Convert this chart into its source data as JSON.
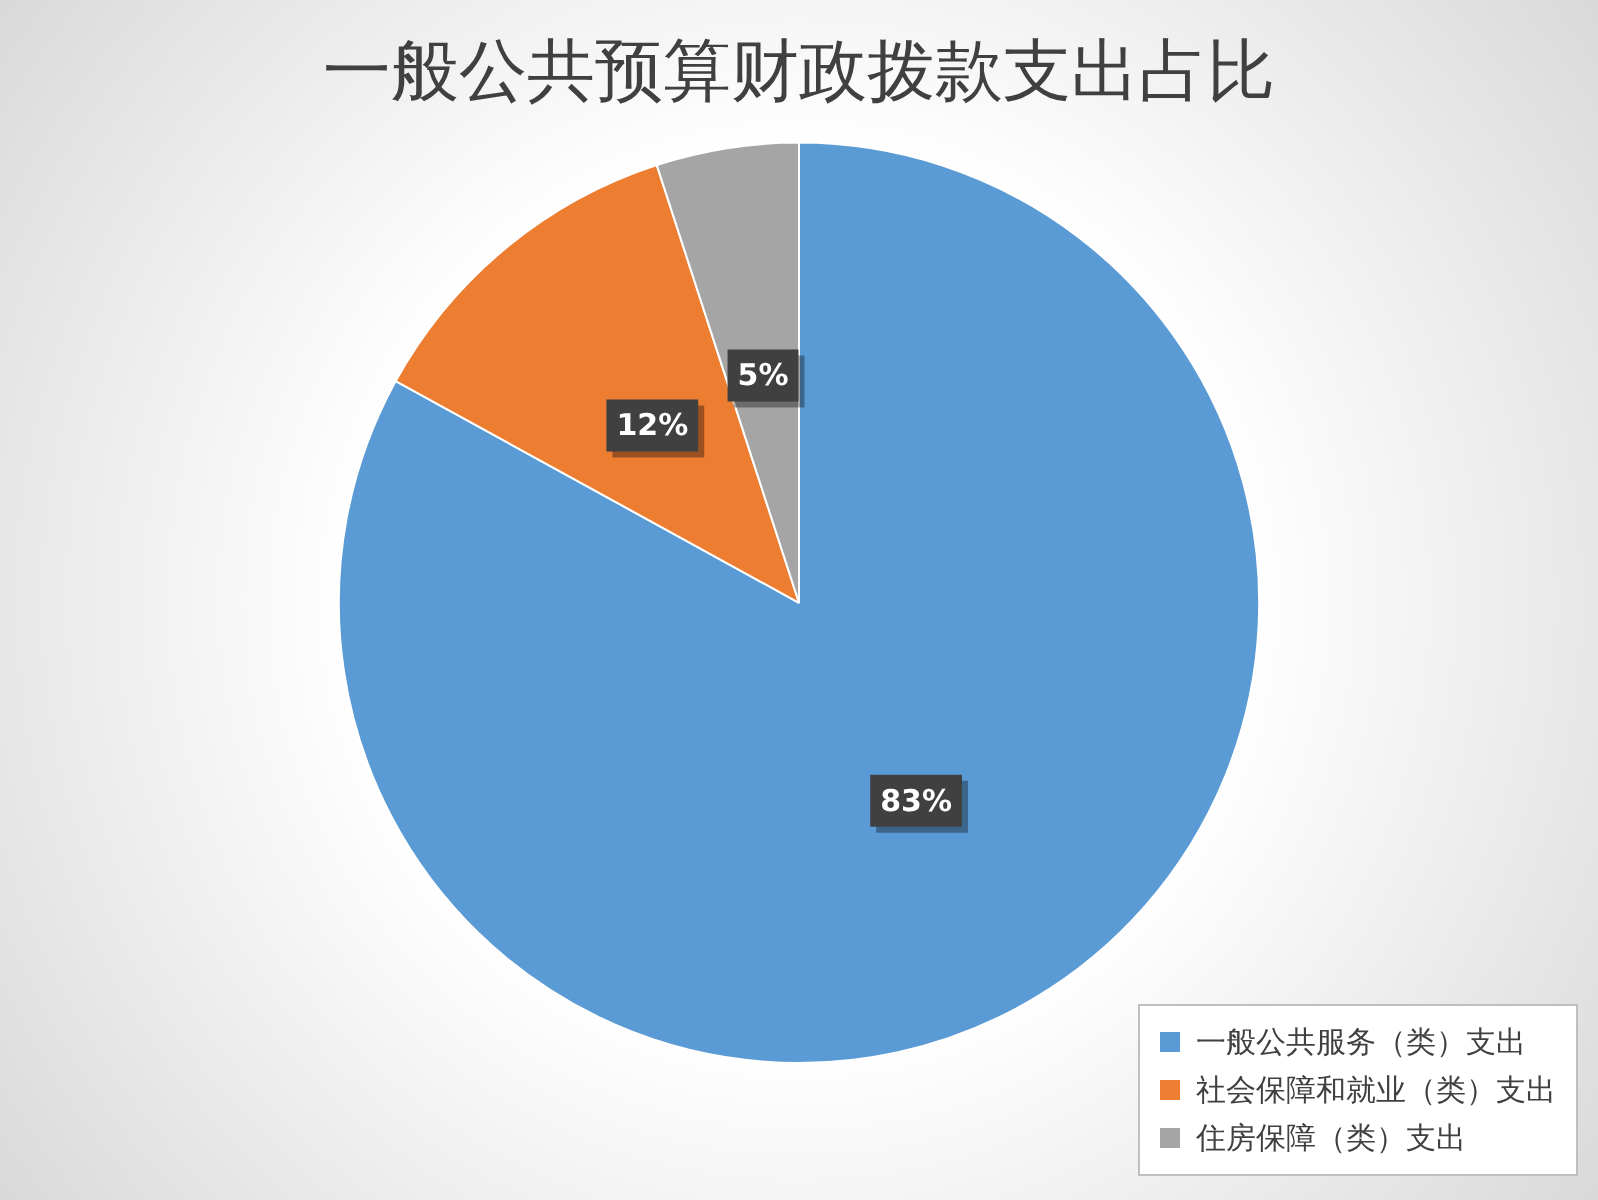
{
  "chart_data": {
    "type": "pie",
    "title": "一般公共预算财政拨款支出占比",
    "categories": [
      "一般公共服务（类）支出",
      "社会保障和就业（类）支出",
      "住房保障（类）支出"
    ],
    "values": [
      83,
      12,
      5
    ],
    "colors": [
      "#5b9bd5",
      "#ed7d31",
      "#a5a5a5"
    ],
    "value_labels": [
      "83%",
      "12%",
      "5%"
    ],
    "legend": "bottom right"
  }
}
